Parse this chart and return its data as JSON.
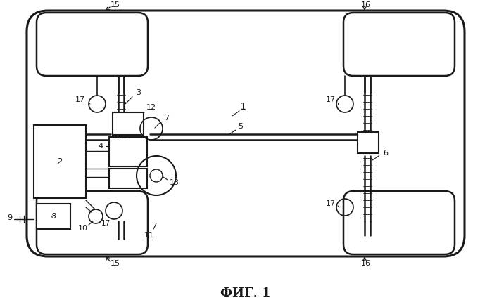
{
  "title": "ФИГ. 1",
  "bg_color": "#ffffff",
  "lc": "#1a1a1a",
  "fig_width": 6.99,
  "fig_height": 4.37,
  "dpi": 100
}
